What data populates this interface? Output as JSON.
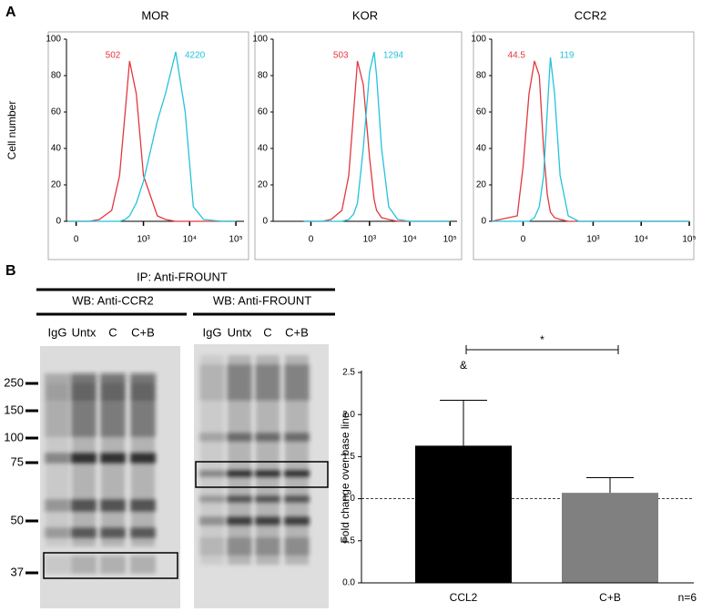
{
  "figure": {
    "panel_labels": [
      "A",
      "B"
    ]
  },
  "chart_data": [
    {
      "type": "line",
      "title": "MOR",
      "ylabel": "Cell number",
      "xscale": "biexponential",
      "x": [
        -30,
        0,
        50,
        100,
        200,
        300,
        400,
        500,
        700,
        1000,
        2000,
        3000,
        5000,
        8000,
        12000,
        20000,
        50000,
        100000
      ],
      "series": [
        {
          "color": "#e2373f",
          "label": "502",
          "values": [
            0,
            0,
            0,
            1,
            6,
            25,
            60,
            88,
            70,
            25,
            3,
            1,
            0,
            0,
            0,
            0,
            0,
            0
          ]
        },
        {
          "color": "#22c3dc",
          "label": "4220",
          "values": [
            0,
            0,
            0,
            0,
            0,
            0,
            1,
            3,
            10,
            22,
            55,
            70,
            93,
            60,
            8,
            1,
            0,
            0
          ]
        }
      ],
      "xlim": [
        -35,
        150000
      ],
      "xticks": [
        0,
        {
          "value": 1000,
          "label": "10³"
        },
        {
          "value": 10000,
          "label": "10⁴"
        },
        {
          "value": 100000,
          "label": "10⁵"
        }
      ],
      "ylim": [
        0,
        100
      ],
      "yticks": [
        0,
        20,
        40,
        60,
        80,
        100
      ]
    },
    {
      "type": "line",
      "title": "KOR",
      "xscale": "biexponential",
      "x": [
        -30,
        0,
        50,
        100,
        200,
        300,
        400,
        500,
        700,
        1000,
        1300,
        1500,
        2000,
        3000,
        5000,
        10000,
        50000,
        100000
      ],
      "series": [
        {
          "color": "#e2373f",
          "label": "503",
          "values": [
            0,
            0,
            0,
            1,
            6,
            25,
            60,
            88,
            75,
            35,
            12,
            6,
            2,
            1,
            0,
            0,
            0,
            0
          ]
        },
        {
          "color": "#22c3dc",
          "label": "1294",
          "values": [
            0,
            0,
            0,
            0,
            0,
            1,
            4,
            10,
            40,
            82,
            93,
            80,
            40,
            8,
            1,
            0,
            0,
            0
          ]
        }
      ],
      "xlim": [
        -300,
        150000
      ],
      "xticks": [
        0,
        {
          "value": 1000,
          "label": "10³"
        },
        {
          "value": 10000,
          "label": "10⁴"
        },
        {
          "value": 100000,
          "label": "10⁵"
        }
      ],
      "ylim": [
        0,
        100
      ],
      "yticks": [
        0,
        20,
        40,
        60,
        80,
        100
      ]
    },
    {
      "type": "line",
      "title": "CCR2",
      "xscale": "biexponential",
      "x": [
        -150,
        -20,
        0,
        20,
        40,
        60,
        80,
        100,
        120,
        150,
        200,
        300,
        500,
        1000,
        10000,
        100000
      ],
      "series": [
        {
          "color": "#e2373f",
          "label": "44.5",
          "values": [
            0,
            3,
            30,
            70,
            88,
            80,
            40,
            15,
            5,
            2,
            1,
            0,
            0,
            0,
            0,
            0
          ]
        },
        {
          "color": "#22c3dc",
          "label": "119",
          "values": [
            0,
            0,
            0,
            0,
            2,
            8,
            25,
            60,
            90,
            70,
            25,
            3,
            0,
            0,
            0,
            0
          ]
        }
      ],
      "xlim": [
        -150,
        100000
      ],
      "xticks": [
        0,
        {
          "value": 1000,
          "label": "10³"
        },
        {
          "value": 10000,
          "label": "10⁴"
        },
        {
          "value": 100000,
          "label": "10⁵"
        }
      ],
      "ylim": [
        0,
        100
      ],
      "yticks": [
        0,
        20,
        40,
        60,
        80,
        100
      ]
    },
    {
      "type": "bar",
      "ylabel": "Fold change over base line",
      "categories": [
        "CCL2",
        "C+B"
      ],
      "values": [
        1.63,
        1.07
      ],
      "errors": [
        0.54,
        0.18
      ],
      "colors": [
        "#000000",
        "#808080"
      ],
      "ylim": [
        0,
        2.5
      ],
      "yticks": [
        {
          "value": 0,
          "label": "0.0"
        },
        {
          "value": 0.5,
          "label": "0.5"
        },
        {
          "value": 1,
          "label": "1.0"
        },
        {
          "value": 1.5,
          "label": "1.5"
        },
        {
          "value": 2,
          "label": "2.0"
        },
        {
          "value": 2.5,
          "label": "2.5"
        }
      ],
      "reference_line": 1,
      "significance": "*",
      "marker": "&",
      "n_label": "n=6"
    }
  ],
  "blots": {
    "ip_label": "IP: Anti-FROUNT",
    "wb_labels": [
      "WB: Anti-CCR2",
      "WB: Anti-FROUNT"
    ],
    "lanes": [
      "IgG",
      "Untx",
      "C",
      "C+B"
    ],
    "markers": [
      "250",
      "150",
      "100",
      "75",
      "50",
      "37"
    ]
  }
}
